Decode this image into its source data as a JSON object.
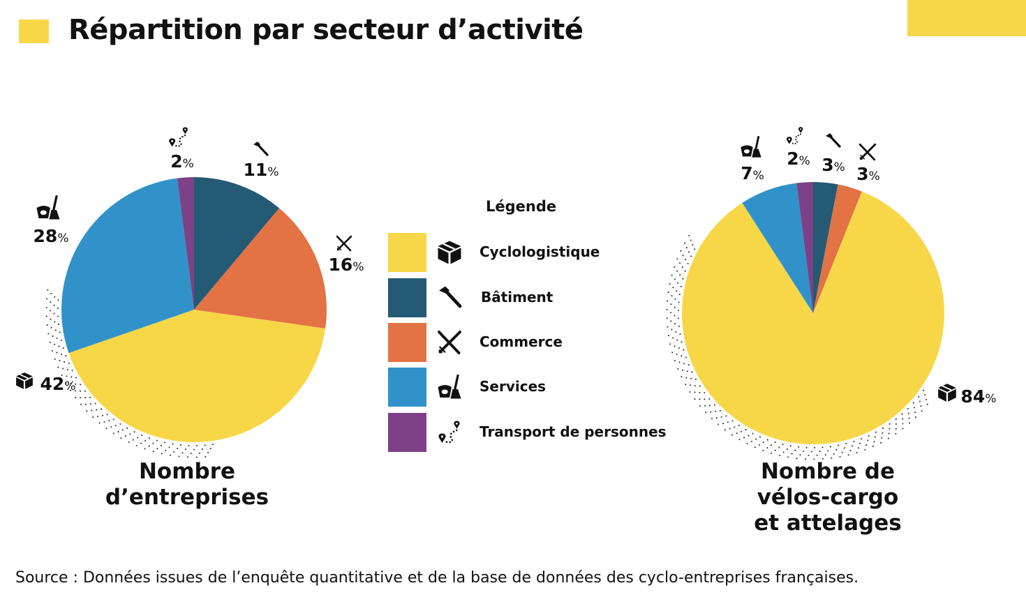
{
  "page": {
    "title": "Répartition par secteur d’activité",
    "source": "Source : Données issues de l’enquête quantitative et de la base de données des cyclo-entreprises françaises.",
    "accent_color": "#f7d748"
  },
  "legend": {
    "title": "Légende",
    "items": [
      {
        "label": "Cyclologistique",
        "color": "#f7d748",
        "icon": "package-icon"
      },
      {
        "label": "Bâtiment",
        "color": "#245a73",
        "icon": "hammer-icon"
      },
      {
        "label": "Commerce",
        "color": "#e37244",
        "icon": "fork-knife-icon"
      },
      {
        "label": "Services",
        "color": "#3192c9",
        "icon": "bucket-broom-icon"
      },
      {
        "label": "Transport de personnes",
        "color": "#7c4187",
        "icon": "route-pin-icon"
      }
    ]
  },
  "chart_data": [
    {
      "type": "pie",
      "title": "Nombre\nd’entreprises",
      "unit": "%",
      "slices": [
        {
          "label": "Bâtiment",
          "value": 11,
          "color": "#245a73",
          "icon": "hammer-icon"
        },
        {
          "label": "Commerce",
          "value": 16,
          "color": "#e37244",
          "icon": "fork-knife-icon"
        },
        {
          "label": "Cyclologistique",
          "value": 42,
          "color": "#f7d748",
          "icon": "package-icon"
        },
        {
          "label": "Services",
          "value": 28,
          "color": "#3192c9",
          "icon": "bucket-broom-icon"
        },
        {
          "label": "Transport de personnes",
          "value": 2,
          "color": "#7c4187",
          "icon": "route-pin-icon"
        }
      ]
    },
    {
      "type": "pie",
      "title": "Nombre de\nvélos-cargo\net attelages",
      "unit": "%",
      "slices": [
        {
          "label": "Bâtiment",
          "value": 3,
          "color": "#245a73",
          "icon": "hammer-icon"
        },
        {
          "label": "Commerce",
          "value": 3,
          "color": "#e37244",
          "icon": "fork-knife-icon"
        },
        {
          "label": "Cyclologistique",
          "value": 84,
          "color": "#f7d748",
          "icon": "package-icon"
        },
        {
          "label": "Services",
          "value": 7,
          "color": "#3192c9",
          "icon": "bucket-broom-icon"
        },
        {
          "label": "Transport de personnes",
          "value": 2,
          "color": "#7c4187",
          "icon": "route-pin-icon"
        }
      ]
    }
  ]
}
